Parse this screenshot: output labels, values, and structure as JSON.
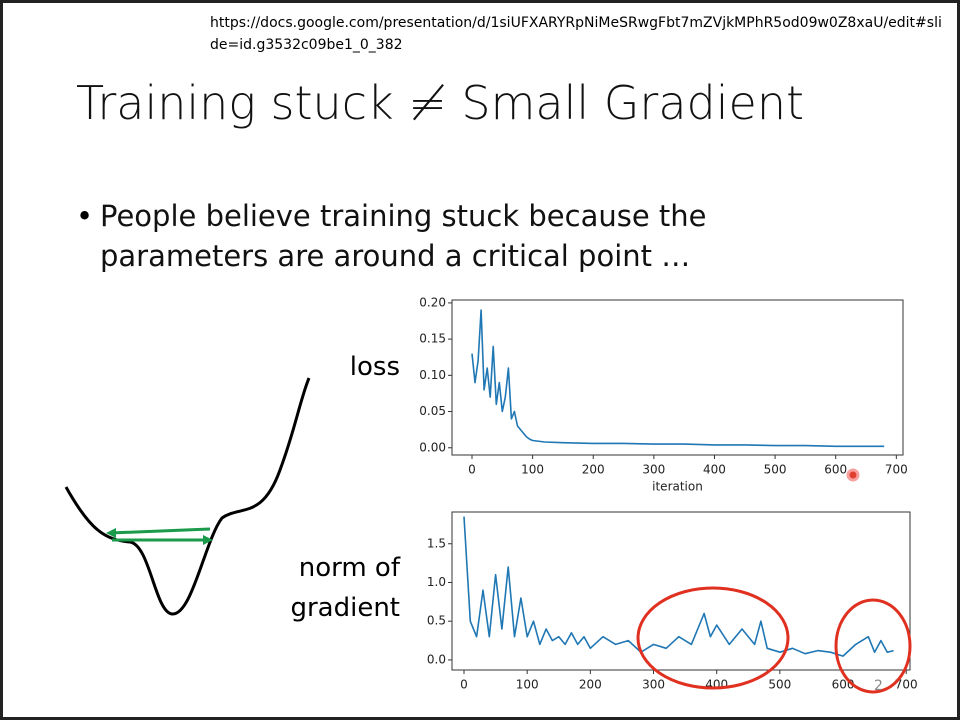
{
  "url": "https://docs.google.com/presentation/d/1siUFXARYRpNiMeSRwgFbt7mZVjkMPhR5od09w0Z8xaU/edit#slide=id.g3532c09be1_0_382",
  "title": "Training stuck ≠ Small Gradient",
  "bullet": "People believe training stuck because the parameters are around a critical point …",
  "labels": {
    "loss": "loss",
    "gradient": "norm of gradient"
  },
  "page_number": "2",
  "chart_data": [
    {
      "type": "line",
      "xlabel": "iteration",
      "x": [
        0,
        5,
        10,
        15,
        20,
        25,
        30,
        35,
        40,
        45,
        50,
        55,
        60,
        65,
        70,
        75,
        80,
        85,
        90,
        95,
        100,
        120,
        150,
        200,
        250,
        300,
        350,
        400,
        450,
        500,
        550,
        600,
        650,
        680
      ],
      "series": [
        {
          "color": "#1f77b4",
          "values": [
            0.13,
            0.09,
            0.12,
            0.19,
            0.08,
            0.11,
            0.07,
            0.14,
            0.06,
            0.09,
            0.05,
            0.07,
            0.11,
            0.04,
            0.05,
            0.03,
            0.025,
            0.02,
            0.015,
            0.012,
            0.01,
            0.008,
            0.007,
            0.006,
            0.006,
            0.005,
            0.005,
            0.004,
            0.004,
            0.003,
            0.003,
            0.002,
            0.002,
            0.002
          ]
        }
      ],
      "xlim": [
        -33,
        711
      ],
      "xticks": [
        0,
        100,
        200,
        300,
        400,
        500,
        600,
        700
      ],
      "ylim": [
        -0.01,
        0.204
      ],
      "yticks": [
        {
          "value": 0,
          "label": "0.00"
        },
        {
          "value": 0.05,
          "label": "0.05"
        },
        {
          "value": 0.1,
          "label": "0.10"
        },
        {
          "value": 0.15,
          "label": "0.15"
        },
        {
          "value": 0.2,
          "label": "0.20"
        }
      ]
    },
    {
      "type": "line",
      "x": [
        0,
        10,
        20,
        30,
        40,
        50,
        60,
        70,
        80,
        90,
        100,
        110,
        120,
        130,
        140,
        150,
        160,
        170,
        180,
        190,
        200,
        220,
        240,
        260,
        280,
        300,
        320,
        340,
        360,
        380,
        390,
        400,
        420,
        440,
        460,
        470,
        480,
        500,
        520,
        540,
        560,
        580,
        600,
        620,
        640,
        650,
        660,
        670,
        680
      ],
      "series": [
        {
          "color": "#1f77b4",
          "values": [
            1.85,
            0.5,
            0.3,
            0.9,
            0.3,
            1.1,
            0.4,
            1.2,
            0.3,
            0.8,
            0.3,
            0.5,
            0.2,
            0.4,
            0.25,
            0.3,
            0.2,
            0.35,
            0.2,
            0.3,
            0.15,
            0.3,
            0.2,
            0.25,
            0.1,
            0.2,
            0.15,
            0.3,
            0.2,
            0.6,
            0.3,
            0.45,
            0.2,
            0.4,
            0.2,
            0.5,
            0.15,
            0.1,
            0.15,
            0.08,
            0.12,
            0.1,
            0.05,
            0.2,
            0.3,
            0.1,
            0.25,
            0.1,
            0.12
          ]
        }
      ],
      "xlim": [
        -19,
        706
      ],
      "xticks": [
        0,
        100,
        200,
        300,
        400,
        500,
        600,
        700
      ],
      "ylim": [
        -0.13,
        1.91
      ],
      "yticks": [
        {
          "value": 0,
          "label": "0.0"
        },
        {
          "value": 0.5,
          "label": "0.5"
        },
        {
          "value": 1,
          "label": "1.0"
        },
        {
          "value": 1.5,
          "label": "1.5"
        }
      ]
    }
  ]
}
